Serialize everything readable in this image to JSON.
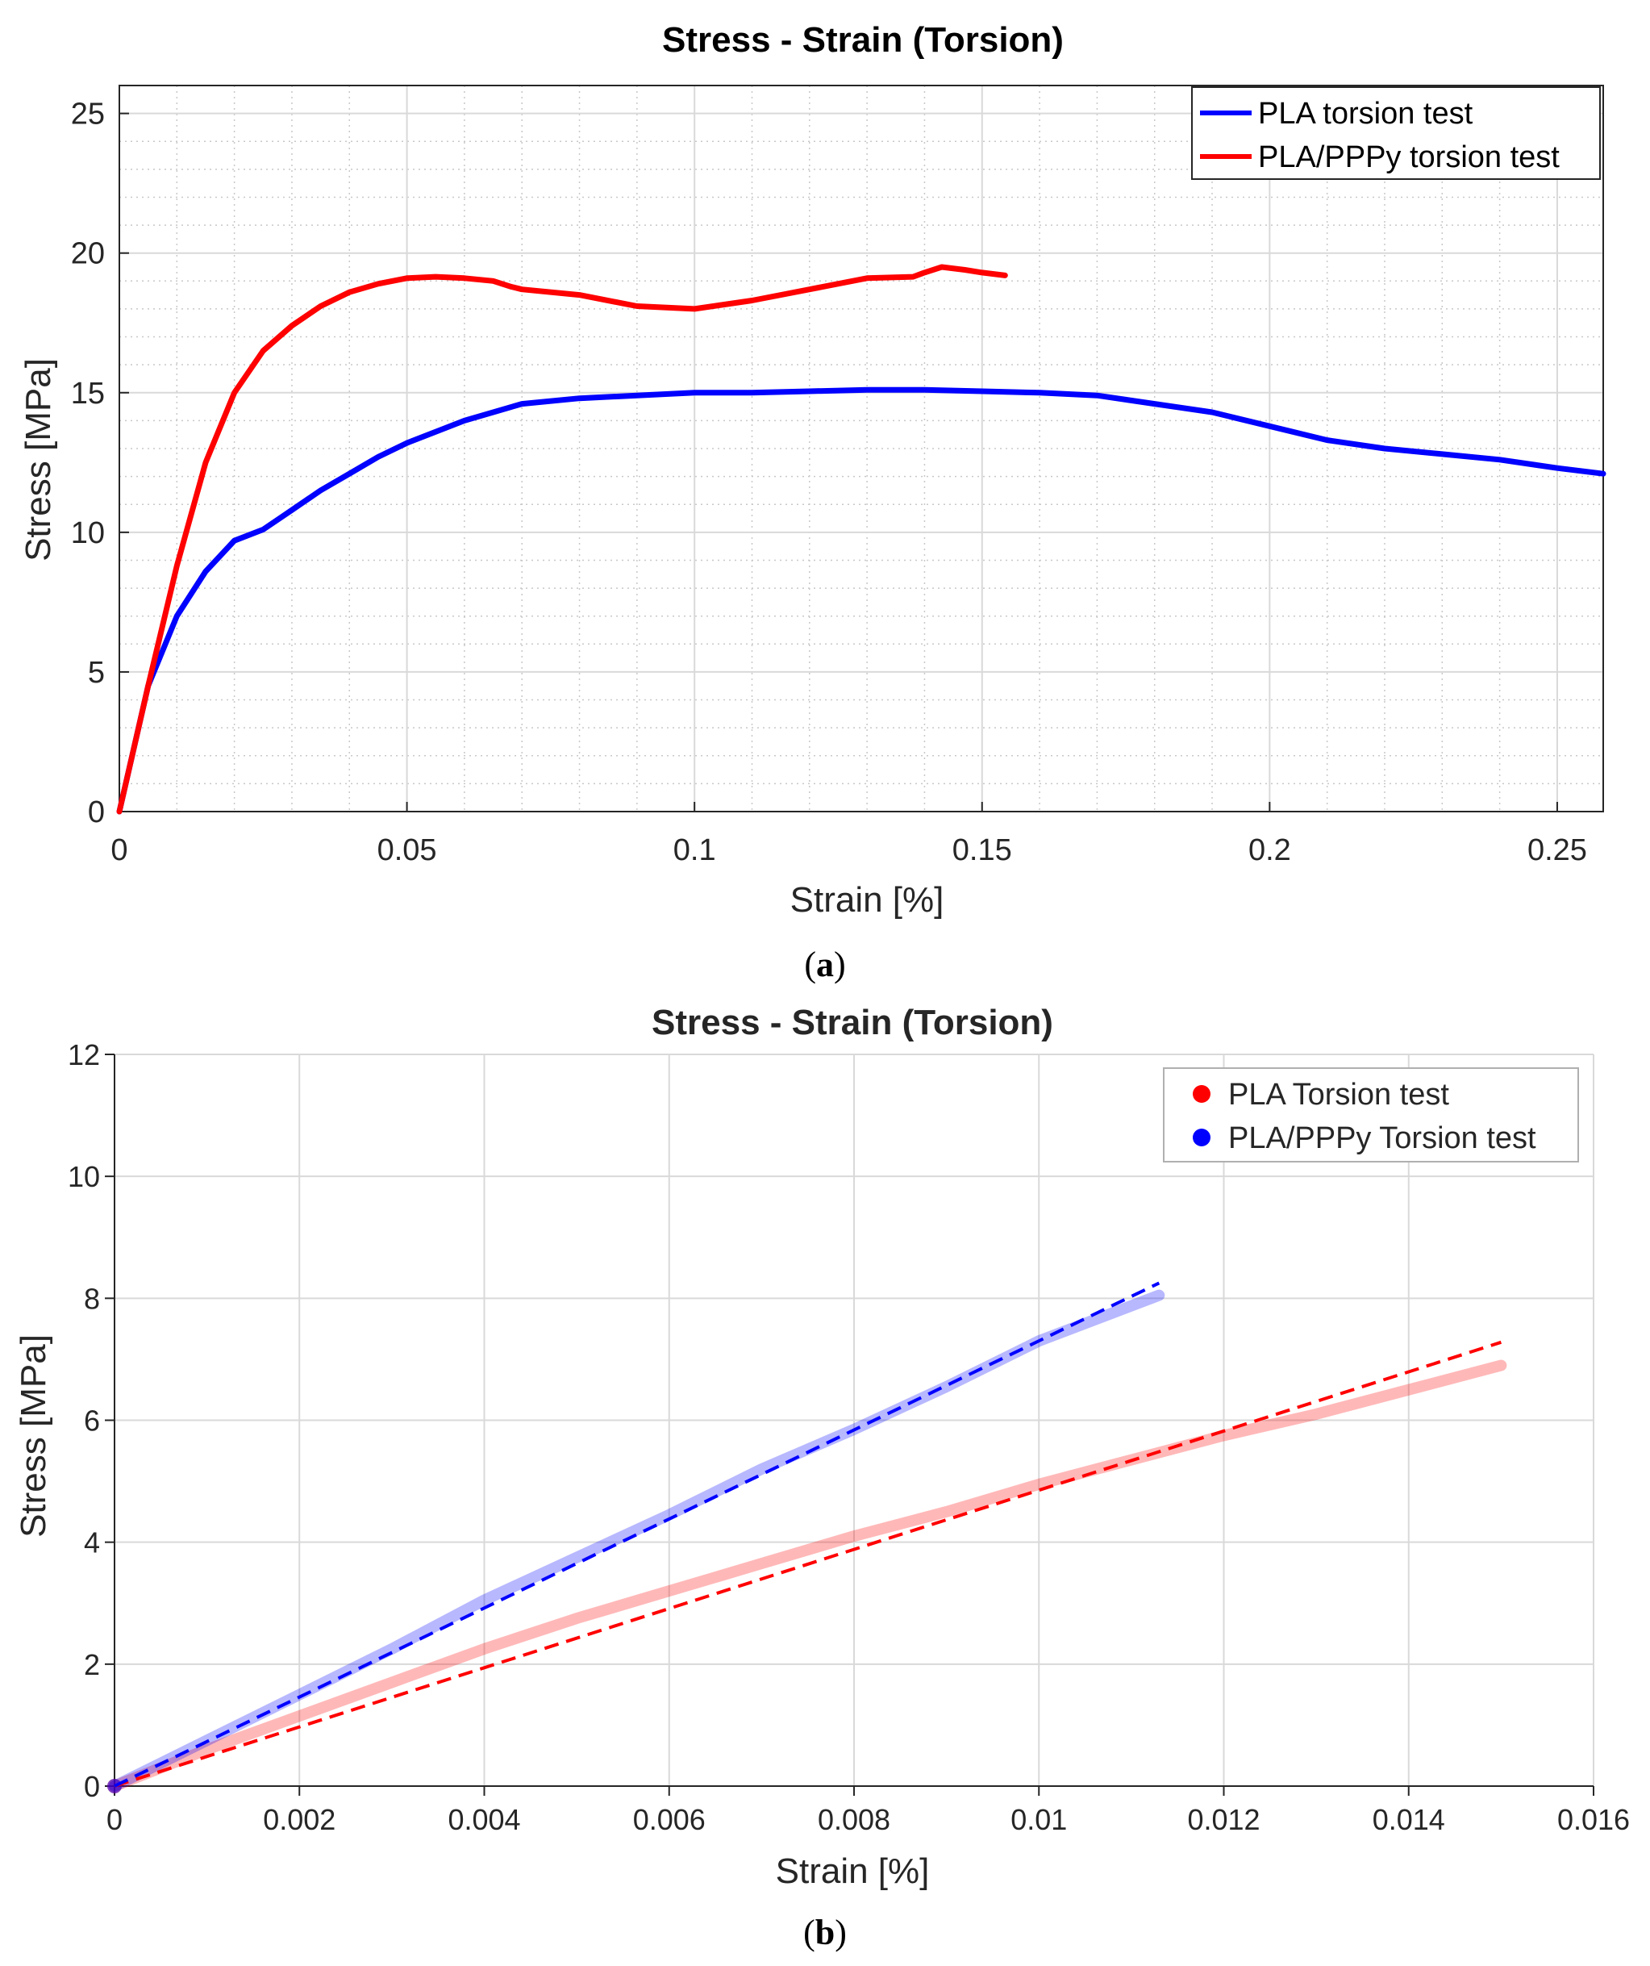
{
  "colors": {
    "blue": "#0000ff",
    "red": "#ff0000",
    "grid_major": "#d9d9d9",
    "grid_minor": "#c8c8c8",
    "axis": "#262626",
    "background": "#ffffff"
  },
  "chart_data": [
    {
      "id": "a",
      "caption": "a",
      "type": "line",
      "title": "Stress - Strain (Torsion)",
      "xlabel": "Strain [%]",
      "ylabel": "Stress [MPa]",
      "xlim": [
        0,
        0.258
      ],
      "ylim": [
        0,
        26
      ],
      "xticks": [
        0,
        0.05,
        0.1,
        0.15,
        0.2,
        0.25
      ],
      "xtick_labels": [
        "0",
        "0.05",
        "0.1",
        "0.15",
        "0.2",
        "0.25"
      ],
      "yticks": [
        0,
        5,
        10,
        15,
        20,
        25
      ],
      "ytick_labels": [
        "0",
        "5",
        "10",
        "15",
        "20",
        "25"
      ],
      "grid": "major and minor (dotted)",
      "legend_position": "top-right",
      "series": [
        {
          "name": "PLA torsion test",
          "color": "#0000ff",
          "style": "solid",
          "x": [
            0,
            0.005,
            0.01,
            0.015,
            0.02,
            0.025,
            0.03,
            0.035,
            0.04,
            0.045,
            0.05,
            0.055,
            0.06,
            0.065,
            0.07,
            0.08,
            0.09,
            0.1,
            0.11,
            0.12,
            0.13,
            0.14,
            0.15,
            0.16,
            0.17,
            0.18,
            0.19,
            0.2,
            0.21,
            0.22,
            0.23,
            0.24,
            0.25,
            0.258
          ],
          "y": [
            0,
            4.5,
            7.0,
            8.6,
            9.7,
            10.1,
            10.8,
            11.5,
            12.1,
            12.7,
            13.2,
            13.6,
            14.0,
            14.3,
            14.6,
            14.8,
            14.9,
            15.0,
            15.0,
            15.05,
            15.1,
            15.1,
            15.05,
            15.0,
            14.9,
            14.6,
            14.3,
            13.8,
            13.3,
            13.0,
            12.8,
            12.6,
            12.3,
            12.1
          ]
        },
        {
          "name": "PLA/PPPy torsion test",
          "color": "#ff0000",
          "style": "solid",
          "x": [
            0,
            0.005,
            0.01,
            0.015,
            0.02,
            0.025,
            0.03,
            0.035,
            0.04,
            0.045,
            0.05,
            0.055,
            0.06,
            0.065,
            0.068,
            0.07,
            0.08,
            0.09,
            0.1,
            0.11,
            0.12,
            0.13,
            0.138,
            0.14,
            0.143,
            0.147,
            0.15,
            0.154
          ],
          "y": [
            0,
            4.5,
            8.8,
            12.5,
            15.0,
            16.5,
            17.4,
            18.1,
            18.6,
            18.9,
            19.1,
            19.15,
            19.1,
            19.0,
            18.8,
            18.7,
            18.5,
            18.1,
            18.0,
            18.3,
            18.7,
            19.1,
            19.15,
            19.3,
            19.5,
            19.4,
            19.3,
            19.2
          ]
        }
      ]
    },
    {
      "id": "b",
      "caption": "b",
      "type": "line",
      "title": "Stress - Strain (Torsion)",
      "xlabel": "Strain [%]",
      "ylabel": "Stress [MPa]",
      "xlim": [
        0,
        0.016
      ],
      "ylim": [
        0,
        12
      ],
      "xticks": [
        0,
        0.002,
        0.004,
        0.006,
        0.008,
        0.01,
        0.012,
        0.014,
        0.016
      ],
      "xtick_labels": [
        "0",
        "0.002",
        "0.004",
        "0.006",
        "0.008",
        "0.01",
        "0.012",
        "0.014",
        "0.016"
      ],
      "yticks": [
        0,
        2,
        4,
        6,
        8,
        10,
        12
      ],
      "ytick_labels": [
        "0",
        "2",
        "4",
        "6",
        "8",
        "10",
        "12"
      ],
      "grid": "major",
      "legend_position": "top-right",
      "series": [
        {
          "name": "PLA Torsion test",
          "color": "#ff0000",
          "style": "measured",
          "x": [
            0,
            0.001,
            0.002,
            0.003,
            0.004,
            0.005,
            0.006,
            0.007,
            0.008,
            0.009,
            0.01,
            0.011,
            0.012,
            0.013,
            0.014,
            0.015
          ],
          "y": [
            0,
            0.6,
            1.15,
            1.7,
            2.25,
            2.75,
            3.2,
            3.65,
            4.1,
            4.5,
            4.95,
            5.35,
            5.75,
            6.1,
            6.5,
            6.9
          ]
        },
        {
          "name": "PLA/PPPy Torsion test",
          "color": "#0000ff",
          "style": "measured",
          "x": [
            0,
            0.001,
            0.002,
            0.003,
            0.004,
            0.005,
            0.006,
            0.007,
            0.008,
            0.009,
            0.01,
            0.0113
          ],
          "y": [
            0,
            0.75,
            1.5,
            2.25,
            3.05,
            3.75,
            4.45,
            5.2,
            5.85,
            6.55,
            7.3,
            8.05
          ]
        },
        {
          "name": "PLA linear fit",
          "color": "#ff0000",
          "style": "dashed",
          "x": [
            0,
            0.015
          ],
          "y": [
            0,
            7.28
          ]
        },
        {
          "name": "PLA/PPPy linear fit",
          "color": "#0000ff",
          "style": "dashed",
          "x": [
            0,
            0.0113
          ],
          "y": [
            0,
            8.25
          ]
        }
      ]
    }
  ]
}
